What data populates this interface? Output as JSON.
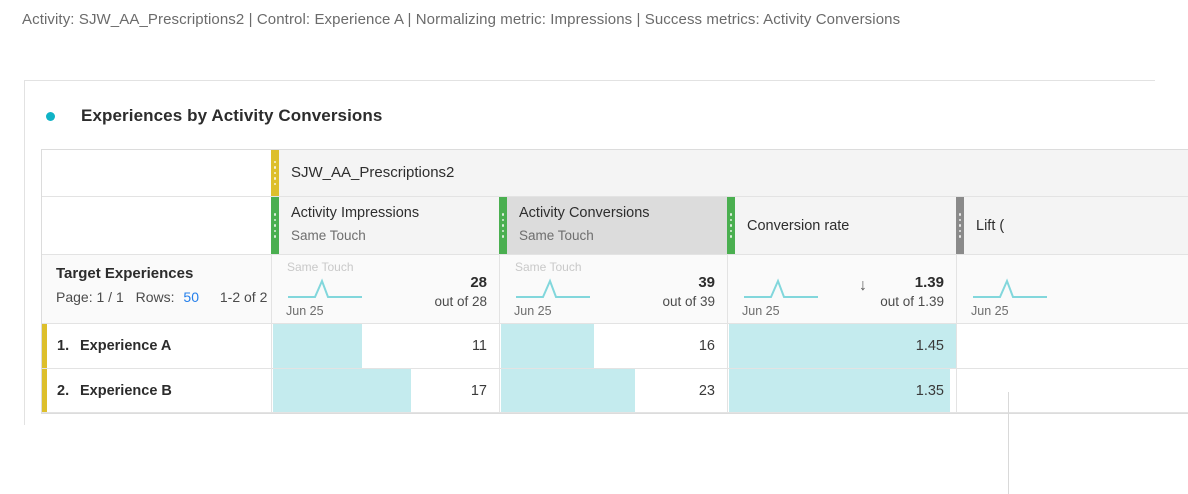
{
  "info_bar": "Activity: SJW_AA_Prescriptions2 | Control: Experience A | Normalizing metric: Impressions | Success metrics: Activity Conversions",
  "panel": {
    "title": "Experiences by Activity Conversions",
    "accent_color": "#10b3c6"
  },
  "table": {
    "activity": {
      "name": "SJW_AA_Prescriptions2"
    },
    "columns": [
      {
        "label": "Activity Impressions",
        "sublabel": "Same Touch",
        "grip_color": "#4aaf50"
      },
      {
        "label": "Activity Conversions",
        "sublabel": "Same Touch",
        "grip_color": "#4aaf50",
        "selected": true
      },
      {
        "label": "Conversion rate",
        "sublabel": "",
        "grip_color": "#4aaf50"
      },
      {
        "label": "Lift (",
        "sublabel": "",
        "grip_color": "#8a8a8a"
      }
    ],
    "rowheader": {
      "title": "Target Experiences",
      "page_label": "Page:",
      "page_value": "1 / 1",
      "rows_label": "Rows:",
      "rows_value": "50",
      "range": "1-2 of 2"
    },
    "summary": {
      "impressions": {
        "ghost": "Same Touch",
        "date": "Jun 25",
        "total": "28",
        "out_of": "out of 28"
      },
      "conversions": {
        "ghost": "Same Touch",
        "date": "Jun 25",
        "total": "39",
        "out_of": "out of 39"
      },
      "rate": {
        "date": "Jun 25",
        "total": "1.39",
        "out_of": "out of 1.39",
        "sort_icon": "down-arrow",
        "sort_glyph": "↓"
      },
      "lift": {
        "date": "Jun 25"
      }
    },
    "rows": [
      {
        "rank": "1.",
        "name": "Experience A",
        "impressions": "11",
        "conversions": "16",
        "rate": "1.45",
        "fills": {
          "impressions": 39.3,
          "conversions": 41.0,
          "rate": 100,
          "lift": 0
        }
      },
      {
        "rank": "2.",
        "name": "Experience B",
        "impressions": "17",
        "conversions": "23",
        "rate": "1.35",
        "fills": {
          "impressions": 60.7,
          "conversions": 59.0,
          "rate": 97.1,
          "lift": 0
        }
      }
    ],
    "colors": {
      "bar_fill": "#c4ebee",
      "sparkline": "#82d7dc",
      "target_activity": "#ddbf2b",
      "success_metric": "#4aaf50"
    }
  }
}
